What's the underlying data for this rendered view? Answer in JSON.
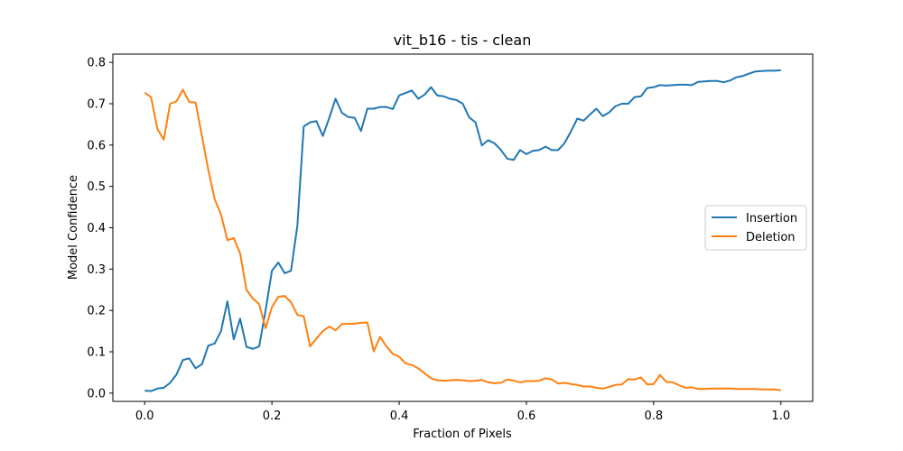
{
  "chart_data": {
    "type": "line",
    "title": "vit_b16 - tis - clean",
    "xlabel": "Fraction of Pixels",
    "ylabel": "Model Confidence",
    "xlim": [
      -0.05,
      1.05
    ],
    "ylim": [
      -0.02,
      0.82
    ],
    "xticks": [
      "0.0",
      "0.2",
      "0.4",
      "0.6",
      "0.8",
      "1.0"
    ],
    "yticks": [
      "0.0",
      "0.1",
      "0.2",
      "0.3",
      "0.4",
      "0.5",
      "0.6",
      "0.7",
      "0.8"
    ],
    "grid": false,
    "legend": "center-right",
    "x": [
      0.0,
      0.01,
      0.02,
      0.03,
      0.04,
      0.05,
      0.06,
      0.07,
      0.08,
      0.09,
      0.1,
      0.11,
      0.12,
      0.13,
      0.14,
      0.15,
      0.16,
      0.17,
      0.18,
      0.19,
      0.2,
      0.21,
      0.22,
      0.23,
      0.24,
      0.25,
      0.26,
      0.27,
      0.28,
      0.29,
      0.3,
      0.31,
      0.32,
      0.33,
      0.34,
      0.35,
      0.36,
      0.37,
      0.38,
      0.39,
      0.4,
      0.41,
      0.42,
      0.43,
      0.44,
      0.45,
      0.46,
      0.47,
      0.48,
      0.49,
      0.5,
      0.51,
      0.52,
      0.53,
      0.54,
      0.55,
      0.56,
      0.57,
      0.58,
      0.59,
      0.6,
      0.61,
      0.62,
      0.63,
      0.64,
      0.65,
      0.66,
      0.67,
      0.68,
      0.69,
      0.7,
      0.71,
      0.72,
      0.73,
      0.74,
      0.75,
      0.76,
      0.77,
      0.78,
      0.79,
      0.8,
      0.81,
      0.82,
      0.83,
      0.84,
      0.85,
      0.86,
      0.87,
      0.88,
      0.89,
      0.9,
      0.91,
      0.92,
      0.93,
      0.94,
      0.95,
      0.96,
      0.97,
      0.98,
      0.99,
      1.0
    ],
    "series": [
      {
        "name": "Insertion",
        "color": "#1f77b4",
        "values": [
          0.006,
          0.005,
          0.011,
          0.013,
          0.025,
          0.045,
          0.08,
          0.084,
          0.06,
          0.07,
          0.115,
          0.12,
          0.15,
          0.222,
          0.13,
          0.18,
          0.112,
          0.107,
          0.113,
          0.2,
          0.296,
          0.316,
          0.29,
          0.296,
          0.405,
          0.645,
          0.655,
          0.658,
          0.622,
          0.665,
          0.712,
          0.678,
          0.668,
          0.666,
          0.634,
          0.688,
          0.688,
          0.692,
          0.692,
          0.687,
          0.72,
          0.726,
          0.732,
          0.712,
          0.722,
          0.74,
          0.72,
          0.718,
          0.712,
          0.709,
          0.7,
          0.667,
          0.655,
          0.599,
          0.612,
          0.604,
          0.588,
          0.567,
          0.564,
          0.588,
          0.578,
          0.586,
          0.588,
          0.596,
          0.588,
          0.588,
          0.605,
          0.633,
          0.664,
          0.659,
          0.674,
          0.688,
          0.67,
          0.679,
          0.694,
          0.7,
          0.7,
          0.716,
          0.718,
          0.738,
          0.74,
          0.745,
          0.744,
          0.745,
          0.746,
          0.746,
          0.745,
          0.753,
          0.754,
          0.755,
          0.755,
          0.752,
          0.756,
          0.764,
          0.767,
          0.773,
          0.778,
          0.779,
          0.78,
          0.78,
          0.781
        ]
      },
      {
        "name": "Deletion",
        "color": "#ff7f0e",
        "values": [
          0.727,
          0.716,
          0.639,
          0.613,
          0.7,
          0.706,
          0.734,
          0.704,
          0.703,
          0.622,
          0.54,
          0.469,
          0.432,
          0.37,
          0.375,
          0.338,
          0.25,
          0.229,
          0.215,
          0.157,
          0.208,
          0.233,
          0.235,
          0.22,
          0.189,
          0.186,
          0.113,
          0.132,
          0.15,
          0.161,
          0.152,
          0.167,
          0.168,
          0.168,
          0.17,
          0.171,
          0.101,
          0.136,
          0.113,
          0.095,
          0.088,
          0.072,
          0.068,
          0.06,
          0.048,
          0.036,
          0.031,
          0.03,
          0.031,
          0.032,
          0.031,
          0.029,
          0.03,
          0.032,
          0.026,
          0.024,
          0.025,
          0.033,
          0.03,
          0.026,
          0.029,
          0.029,
          0.03,
          0.036,
          0.033,
          0.023,
          0.025,
          0.022,
          0.02,
          0.016,
          0.016,
          0.013,
          0.011,
          0.015,
          0.02,
          0.021,
          0.034,
          0.033,
          0.038,
          0.021,
          0.022,
          0.044,
          0.027,
          0.026,
          0.019,
          0.013,
          0.014,
          0.01,
          0.01,
          0.011,
          0.011,
          0.011,
          0.011,
          0.01,
          0.01,
          0.01,
          0.01,
          0.009,
          0.009,
          0.009,
          0.007
        ]
      }
    ]
  }
}
